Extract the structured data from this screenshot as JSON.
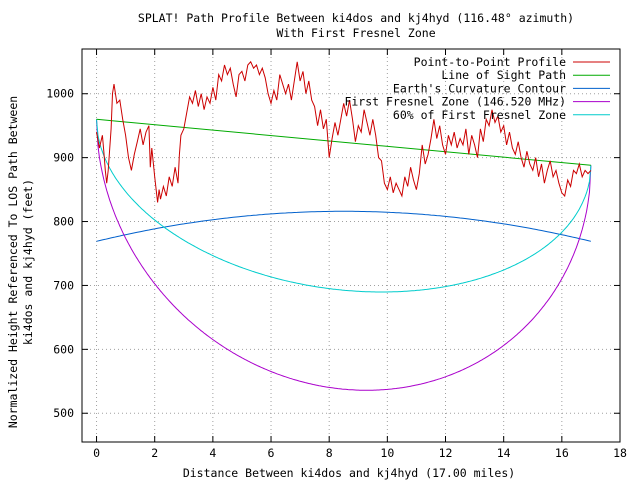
{
  "chart_data": {
    "type": "line",
    "title": "SPLAT! Path Profile Between ki4dos and kj4hyd (116.48° azimuth)",
    "subtitle": "With First Fresnel Zone",
    "xlabel": "Distance Between ki4dos and kj4hyd (17.00 miles)",
    "ylabel_line1": "Normalized Height Referenced To LOS Path Between",
    "ylabel_line2": "ki4dos and kj4hyd (feet)",
    "xlim": [
      -0.5,
      18
    ],
    "ylim": [
      455,
      1070
    ],
    "x_ticks": [
      0,
      2,
      4,
      6,
      8,
      10,
      12,
      14,
      16,
      18
    ],
    "y_ticks": [
      500,
      600,
      700,
      800,
      900,
      1000
    ],
    "grid": true,
    "legend_position": "top-right",
    "series": [
      {
        "name": "Point-to-Point Profile",
        "color": "#cc0000",
        "points": [
          [
            0,
            940
          ],
          [
            0.1,
            915
          ],
          [
            0.2,
            935
          ],
          [
            0.25,
            910
          ],
          [
            0.3,
            880
          ],
          [
            0.35,
            860
          ],
          [
            0.4,
            880
          ],
          [
            0.5,
            945
          ],
          [
            0.55,
            1000
          ],
          [
            0.6,
            1015
          ],
          [
            0.7,
            985
          ],
          [
            0.8,
            990
          ],
          [
            0.9,
            960
          ],
          [
            1.0,
            935
          ],
          [
            1.1,
            900
          ],
          [
            1.2,
            880
          ],
          [
            1.3,
            905
          ],
          [
            1.4,
            925
          ],
          [
            1.5,
            945
          ],
          [
            1.6,
            920
          ],
          [
            1.7,
            940
          ],
          [
            1.8,
            950
          ],
          [
            1.85,
            885
          ],
          [
            1.9,
            915
          ],
          [
            2.0,
            870
          ],
          [
            2.1,
            830
          ],
          [
            2.15,
            850
          ],
          [
            2.2,
            835
          ],
          [
            2.3,
            855
          ],
          [
            2.4,
            840
          ],
          [
            2.5,
            870
          ],
          [
            2.6,
            855
          ],
          [
            2.7,
            885
          ],
          [
            2.8,
            860
          ],
          [
            2.85,
            905
          ],
          [
            2.9,
            935
          ],
          [
            3.0,
            945
          ],
          [
            3.1,
            970
          ],
          [
            3.2,
            995
          ],
          [
            3.3,
            985
          ],
          [
            3.4,
            1005
          ],
          [
            3.5,
            980
          ],
          [
            3.6,
            1000
          ],
          [
            3.7,
            975
          ],
          [
            3.8,
            995
          ],
          [
            3.9,
            985
          ],
          [
            4.0,
            1010
          ],
          [
            4.1,
            990
          ],
          [
            4.2,
            1030
          ],
          [
            4.3,
            1020
          ],
          [
            4.4,
            1045
          ],
          [
            4.5,
            1030
          ],
          [
            4.6,
            1040
          ],
          [
            4.7,
            1015
          ],
          [
            4.8,
            995
          ],
          [
            4.9,
            1030
          ],
          [
            5.0,
            1035
          ],
          [
            5.1,
            1020
          ],
          [
            5.2,
            1045
          ],
          [
            5.3,
            1050
          ],
          [
            5.4,
            1040
          ],
          [
            5.5,
            1045
          ],
          [
            5.6,
            1030
          ],
          [
            5.7,
            1040
          ],
          [
            5.8,
            1025
          ],
          [
            5.9,
            1000
          ],
          [
            6.0,
            985
          ],
          [
            6.1,
            1005
          ],
          [
            6.2,
            990
          ],
          [
            6.3,
            1030
          ],
          [
            6.4,
            1015
          ],
          [
            6.5,
            1000
          ],
          [
            6.6,
            1015
          ],
          [
            6.7,
            990
          ],
          [
            6.9,
            1050
          ],
          [
            7.0,
            1020
          ],
          [
            7.1,
            1035
          ],
          [
            7.2,
            1000
          ],
          [
            7.3,
            1020
          ],
          [
            7.4,
            990
          ],
          [
            7.5,
            980
          ],
          [
            7.6,
            950
          ],
          [
            7.7,
            975
          ],
          [
            7.8,
            945
          ],
          [
            7.9,
            960
          ],
          [
            8.0,
            900
          ],
          [
            8.1,
            930
          ],
          [
            8.2,
            955
          ],
          [
            8.3,
            935
          ],
          [
            8.4,
            960
          ],
          [
            8.5,
            985
          ],
          [
            8.6,
            965
          ],
          [
            8.7,
            990
          ],
          [
            8.8,
            960
          ],
          [
            8.9,
            925
          ],
          [
            9.0,
            950
          ],
          [
            9.1,
            940
          ],
          [
            9.2,
            975
          ],
          [
            9.3,
            955
          ],
          [
            9.4,
            935
          ],
          [
            9.5,
            960
          ],
          [
            9.6,
            935
          ],
          [
            9.7,
            900
          ],
          [
            9.8,
            895
          ],
          [
            9.9,
            860
          ],
          [
            10.0,
            850
          ],
          [
            10.1,
            870
          ],
          [
            10.2,
            845
          ],
          [
            10.3,
            860
          ],
          [
            10.4,
            850
          ],
          [
            10.5,
            840
          ],
          [
            10.6,
            870
          ],
          [
            10.7,
            855
          ],
          [
            10.8,
            885
          ],
          [
            10.9,
            865
          ],
          [
            11.0,
            850
          ],
          [
            11.1,
            875
          ],
          [
            11.2,
            920
          ],
          [
            11.3,
            890
          ],
          [
            11.4,
            905
          ],
          [
            11.5,
            930
          ],
          [
            11.6,
            960
          ],
          [
            11.7,
            930
          ],
          [
            11.8,
            950
          ],
          [
            11.9,
            920
          ],
          [
            12.0,
            905
          ],
          [
            12.1,
            935
          ],
          [
            12.2,
            920
          ],
          [
            12.3,
            940
          ],
          [
            12.4,
            915
          ],
          [
            12.5,
            930
          ],
          [
            12.6,
            920
          ],
          [
            12.7,
            945
          ],
          [
            12.8,
            905
          ],
          [
            12.9,
            935
          ],
          [
            13.0,
            920
          ],
          [
            13.1,
            900
          ],
          [
            13.2,
            945
          ],
          [
            13.3,
            925
          ],
          [
            13.4,
            960
          ],
          [
            13.5,
            950
          ],
          [
            13.6,
            975
          ],
          [
            13.7,
            955
          ],
          [
            13.8,
            965
          ],
          [
            13.9,
            940
          ],
          [
            14.0,
            950
          ],
          [
            14.1,
            920
          ],
          [
            14.2,
            940
          ],
          [
            14.3,
            915
          ],
          [
            14.4,
            905
          ],
          [
            14.5,
            925
          ],
          [
            14.6,
            900
          ],
          [
            14.7,
            885
          ],
          [
            14.8,
            910
          ],
          [
            14.9,
            890
          ],
          [
            15.0,
            880
          ],
          [
            15.1,
            900
          ],
          [
            15.2,
            870
          ],
          [
            15.3,
            890
          ],
          [
            15.4,
            860
          ],
          [
            15.5,
            880
          ],
          [
            15.6,
            895
          ],
          [
            15.7,
            870
          ],
          [
            15.8,
            880
          ],
          [
            15.9,
            860
          ],
          [
            16.0,
            845
          ],
          [
            16.1,
            840
          ],
          [
            16.2,
            865
          ],
          [
            16.3,
            855
          ],
          [
            16.4,
            880
          ],
          [
            16.5,
            875
          ],
          [
            16.6,
            890
          ],
          [
            16.7,
            870
          ],
          [
            16.8,
            880
          ],
          [
            16.9,
            875
          ],
          [
            17.0,
            880
          ]
        ]
      },
      {
        "name": "Line of Sight Path",
        "color": "#00aa00",
        "points": [
          [
            0,
            960
          ],
          [
            17,
            888
          ]
        ]
      },
      {
        "name": "Earth's Curvature Contour",
        "color": "#0060cc",
        "points": [
          [
            0,
            769
          ],
          [
            8.5,
            816
          ],
          [
            17,
            769
          ]
        ]
      },
      {
        "name": "First Fresnel Zone (146.520 MHz)",
        "color": "#aa00cc",
        "points": [
          [
            0,
            960
          ],
          [
            9.4,
            536
          ],
          [
            17,
            888
          ]
        ]
      },
      {
        "name": "60% of First Fresnel Zone",
        "color": "#00cccc",
        "points": [
          [
            0,
            960
          ],
          [
            9.4,
            690
          ],
          [
            17,
            888
          ]
        ]
      }
    ]
  }
}
